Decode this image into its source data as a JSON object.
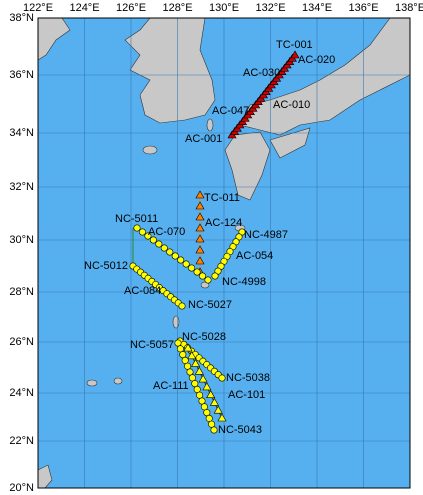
{
  "map": {
    "lon_labels": [
      "122°E",
      "124°E",
      "126°E",
      "128°E",
      "130°E",
      "132°E",
      "134°E",
      "136°E",
      "138°E"
    ],
    "lat_labels": [
      "38°N",
      "36°N",
      "34°N",
      "32°N",
      "30°N",
      "28°N",
      "26°N",
      "24°N",
      "22°N",
      "20°N"
    ],
    "stations": [
      "TC-001",
      "AC-020",
      "AC-030",
      "AC-010",
      "AC-047",
      "AC-001",
      "TC-011",
      "NC-5011",
      "AC-124",
      "AC-070",
      "NC-4987",
      "AC-054",
      "NC-5012",
      "NC-4998",
      "AC-084",
      "NC-5027",
      "NC-5028",
      "NC-5057",
      "NC-5038",
      "AC-111",
      "AC-101",
      "NC-5043"
    ]
  }
}
